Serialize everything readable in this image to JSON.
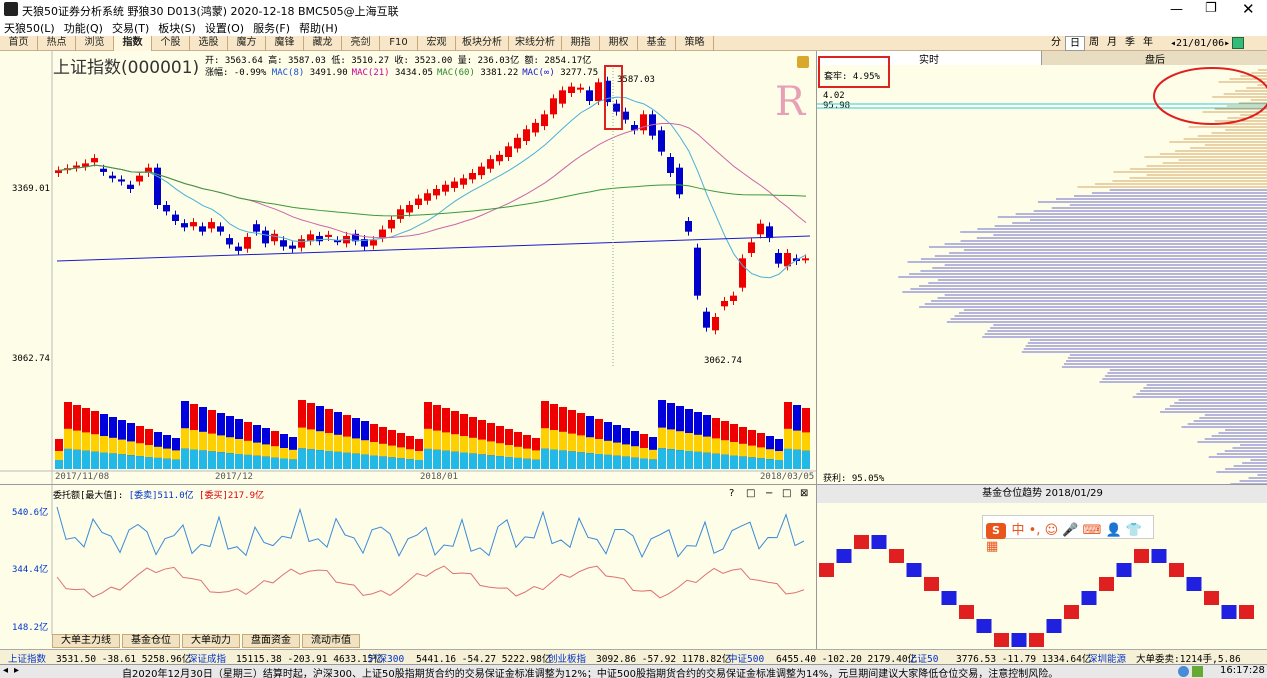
{
  "window": {
    "title": "天狼50证券分析系统 野狼30 D013(鸿蒙) 2020-12-18 BMC505@上海互联"
  },
  "menu": [
    "天狼50(L)",
    "功能(Q)",
    "交易(T)",
    "板块(S)",
    "设置(O)",
    "服务(F)",
    "帮助(H)"
  ],
  "tabs": [
    "首页",
    "热点",
    "浏览",
    "指数",
    "个股",
    "选股",
    "魔方",
    "魔锋",
    "藏龙",
    "亮剑",
    "F10",
    "宏观",
    "板块分析",
    "宋线分析",
    "期指",
    "期权",
    "基金",
    "策略"
  ],
  "active_tab": "指数",
  "period_tabs": [
    "分",
    "日",
    "周",
    "月",
    "季",
    "年"
  ],
  "active_period": "日",
  "date_nav": "◂21/01/06▸",
  "instrument": {
    "name": "上证指数(000001)"
  },
  "ohlc": {
    "line1": "开: 3563.64 高: 3587.03 低: 3510.27 收: 3523.00 量: 236.03亿 额: 2854.17亿",
    "line2_label": "涨幅: -0.99%",
    "ma": [
      {
        "label": "MAC(8)",
        "value": "3491.90",
        "color": "#1a4fd0"
      },
      {
        "label": "MAC(21)",
        "value": "3434.05",
        "color": "#cc0099"
      },
      {
        "label": "MAC(60)",
        "value": "3381.22",
        "color": "#2a8a2a"
      },
      {
        "label": "MAC(∞)",
        "value": "3277.75",
        "color": "#1a1acc"
      }
    ]
  },
  "price_axis": {
    "upper": "3369.01",
    "lower": "3062.74"
  },
  "peak_label": "3587.03",
  "trough_label": "3062.74",
  "date_axis": [
    "2017/11/08",
    "2017/12",
    "2018/01",
    "2018/03/05"
  ],
  "marker_r": "R",
  "side": {
    "tabs": [
      "实时",
      "盘后"
    ],
    "active": "实时",
    "trap": "套牢: 4.95%",
    "v1": "4.02",
    "v2": "95.98",
    "profit": "获利: 95.05%",
    "fund_title": "基金仓位趋势 2018/01/29"
  },
  "osc": {
    "title": "委托额[最大值]:",
    "sell_label": "[委卖]",
    "sell_val": "511.0亿",
    "buy_label": "[委买]",
    "buy_val": "217.9亿",
    "ticks": [
      "540.6亿",
      "344.4亿",
      "148.2亿"
    ]
  },
  "bottom_tabs": [
    "大单主力线",
    "基金仓位",
    "大单动力",
    "盘面资金",
    "流动市值"
  ],
  "ticker": [
    {
      "name": "上证指数",
      "vals": "3531.50 -38.61 5258.96亿"
    },
    {
      "name": "深证成指",
      "vals": "15115.38 -203.91 4633.15亿"
    },
    {
      "name": "沪深300",
      "vals": "5441.16 -54.27 5222.98亿"
    },
    {
      "name": "创业板指",
      "vals": "3092.86 -57.92 1178.82亿"
    },
    {
      "name": "中证500",
      "vals": "6455.40 -102.20 2179.40亿"
    },
    {
      "name": "上证50",
      "vals": "3776.53 -11.79 1334.64亿"
    },
    {
      "name": "深圳能源",
      "vals": "大单委卖:1214手,5.86"
    }
  ],
  "status": {
    "text": "自2020年12月30日（星期三）结算时起，沪深300、上证50股指期货合约的交易保证金标准调整为12%；中证500股指期货合约的交易保证金标准调整为14%，元旦期间建议大家降低仓位交易，注意控制风险。",
    "time": "16:17:28"
  },
  "chart_data": {
    "type": "candlestick",
    "series": [
      {
        "name": "MAC(8)"
      },
      {
        "name": "MAC(21)"
      },
      {
        "name": "MAC(60)"
      },
      {
        "name": "MAC(∞)"
      }
    ],
    "ylim": [
      3062.74,
      3587.03
    ],
    "candles": [
      [
        3390,
        3395
      ],
      [
        3396,
        3399
      ],
      [
        3400,
        3404
      ],
      [
        3402,
        3408
      ],
      [
        3410,
        3418
      ],
      [
        3398,
        3392
      ],
      [
        3385,
        3380
      ],
      [
        3378,
        3374
      ],
      [
        3368,
        3360
      ],
      [
        3374,
        3385
      ],
      [
        3390,
        3400
      ],
      [
        3400,
        3330
      ],
      [
        3330,
        3318
      ],
      [
        3312,
        3300
      ],
      [
        3296,
        3288
      ],
      [
        3290,
        3298
      ],
      [
        3290,
        3280
      ],
      [
        3286,
        3298
      ],
      [
        3290,
        3280
      ],
      [
        3268,
        3256
      ],
      [
        3252,
        3244
      ],
      [
        3248,
        3270
      ],
      [
        3294,
        3280
      ],
      [
        3282,
        3258
      ],
      [
        3262,
        3276
      ],
      [
        3264,
        3252
      ],
      [
        3254,
        3248
      ],
      [
        3250,
        3266
      ],
      [
        3262,
        3275
      ],
      [
        3272,
        3262
      ],
      [
        3270,
        3274
      ],
      [
        3264,
        3262
      ],
      [
        3258,
        3272
      ],
      [
        3276,
        3262
      ],
      [
        3266,
        3252
      ],
      [
        3254,
        3264
      ],
      [
        3268,
        3284
      ],
      [
        3286,
        3302
      ],
      [
        3304,
        3322
      ],
      [
        3316,
        3330
      ],
      [
        3330,
        3342
      ],
      [
        3338,
        3352
      ],
      [
        3348,
        3360
      ],
      [
        3355,
        3368
      ],
      [
        3362,
        3374
      ],
      [
        3368,
        3380
      ],
      [
        3378,
        3390
      ],
      [
        3386,
        3402
      ],
      [
        3398,
        3416
      ],
      [
        3412,
        3424
      ],
      [
        3420,
        3440
      ],
      [
        3436,
        3456
      ],
      [
        3450,
        3472
      ],
      [
        3466,
        3484
      ],
      [
        3478,
        3500
      ],
      [
        3500,
        3530
      ],
      [
        3520,
        3545
      ],
      [
        3540,
        3552
      ],
      [
        3548,
        3550
      ],
      [
        3545,
        3525
      ],
      [
        3525,
        3560
      ],
      [
        3563,
        3523
      ],
      [
        3520,
        3505
      ],
      [
        3505,
        3490
      ],
      [
        3480,
        3470
      ],
      [
        3470,
        3500
      ],
      [
        3500,
        3460
      ],
      [
        3470,
        3430
      ],
      [
        3420,
        3390
      ],
      [
        3400,
        3350
      ],
      [
        3300,
        3280
      ],
      [
        3250,
        3160
      ],
      [
        3130,
        3100
      ],
      [
        3095,
        3120
      ],
      [
        3140,
        3150
      ],
      [
        3150,
        3160
      ],
      [
        3175,
        3230
      ],
      [
        3240,
        3260
      ],
      [
        3275,
        3295
      ],
      [
        3290,
        3268
      ],
      [
        3240,
        3220
      ],
      [
        3215,
        3240
      ],
      [
        3230,
        3225
      ],
      [
        3228,
        3230
      ]
    ]
  }
}
